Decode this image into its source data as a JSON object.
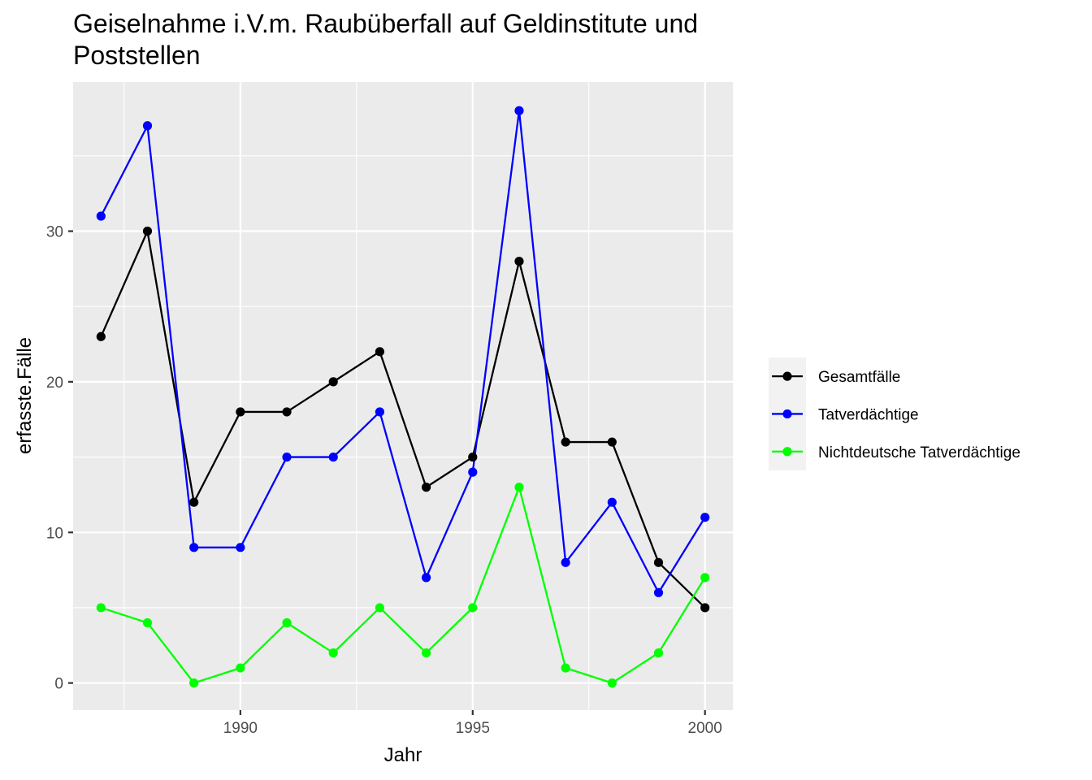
{
  "chart_data": {
    "type": "line",
    "title_line1": "Geiselnahme i.V.m. Raubüberfall auf Geldinstitute und",
    "title_line2": "Poststellen",
    "xlabel": "Jahr",
    "ylabel": "erfasste.Fälle",
    "x": [
      1987,
      1988,
      1989,
      1990,
      1991,
      1992,
      1993,
      1994,
      1995,
      1996,
      1997,
      1998,
      1999,
      2000
    ],
    "xlim": [
      1986.4,
      2000.6
    ],
    "ylim": [
      -1.8,
      39.9
    ],
    "x_ticks": [
      1990,
      1995,
      2000
    ],
    "y_ticks": [
      0,
      10,
      20,
      30
    ],
    "grid": true,
    "legend_position": "right",
    "series": [
      {
        "name": "Gesamtfälle",
        "color": "#000000",
        "values": [
          23,
          30,
          12,
          18,
          18,
          20,
          22,
          13,
          15,
          28,
          16,
          16,
          8,
          5
        ]
      },
      {
        "name": "Tatverdächtige",
        "color": "#0000ff",
        "values": [
          31,
          37,
          9,
          9,
          15,
          15,
          18,
          7,
          14,
          38,
          8,
          12,
          6,
          11
        ]
      },
      {
        "name": "Nichtdeutsche Tatverdächtige",
        "color": "#00ff00",
        "values": [
          5,
          4,
          0,
          1,
          4,
          2,
          5,
          2,
          5,
          13,
          1,
          0,
          2,
          7
        ]
      }
    ]
  }
}
